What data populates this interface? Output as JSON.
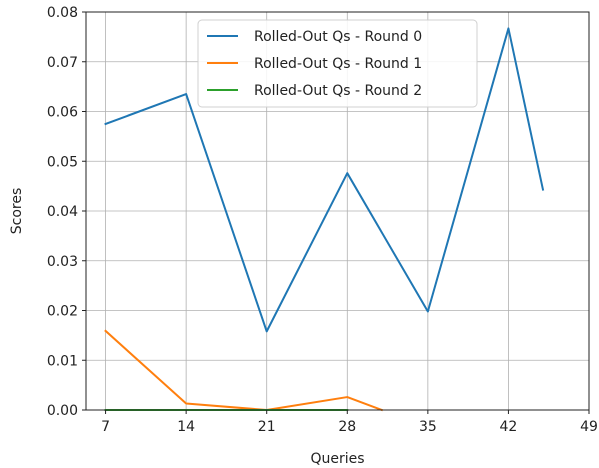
{
  "chart_data": {
    "type": "line",
    "title": "",
    "xlabel": "Queries",
    "ylabel": "Scores",
    "xlim": [
      5.3,
      49
    ],
    "ylim": [
      0,
      0.08
    ],
    "xticks": [
      7,
      14,
      21,
      28,
      35,
      42,
      49
    ],
    "xtick_labels": [
      "7",
      "14",
      "21",
      "28",
      "35",
      "42",
      "49"
    ],
    "yticks": [
      0,
      0.01,
      0.02,
      0.03,
      0.04,
      0.05,
      0.06,
      0.07,
      0.08
    ],
    "ytick_labels": [
      "0.00",
      "0.01",
      "0.02",
      "0.03",
      "0.04",
      "0.05",
      "0.06",
      "0.07",
      "0.08"
    ],
    "grid": true,
    "legend_position": "top-center",
    "series": [
      {
        "name": "Rolled-Out Qs - Round 0",
        "color": "#1f77b4",
        "x": [
          7,
          14,
          21,
          28,
          35,
          42,
          45
        ],
        "y": [
          0.0575,
          0.0635,
          0.0158,
          0.0476,
          0.0198,
          0.0767,
          0.0443
        ]
      },
      {
        "name": "Rolled-Out Qs - Round 1",
        "color": "#ff7f0e",
        "x": [
          7,
          14,
          21,
          28,
          31
        ],
        "y": [
          0.0159,
          0.0013,
          0.0,
          0.0026,
          0.0
        ]
      },
      {
        "name": "Rolled-Out Qs - Round 2",
        "color": "#2ca02c",
        "x": [
          7,
          14,
          21,
          28
        ],
        "y": [
          0.0,
          0.0,
          0.0,
          0.0
        ]
      }
    ]
  }
}
